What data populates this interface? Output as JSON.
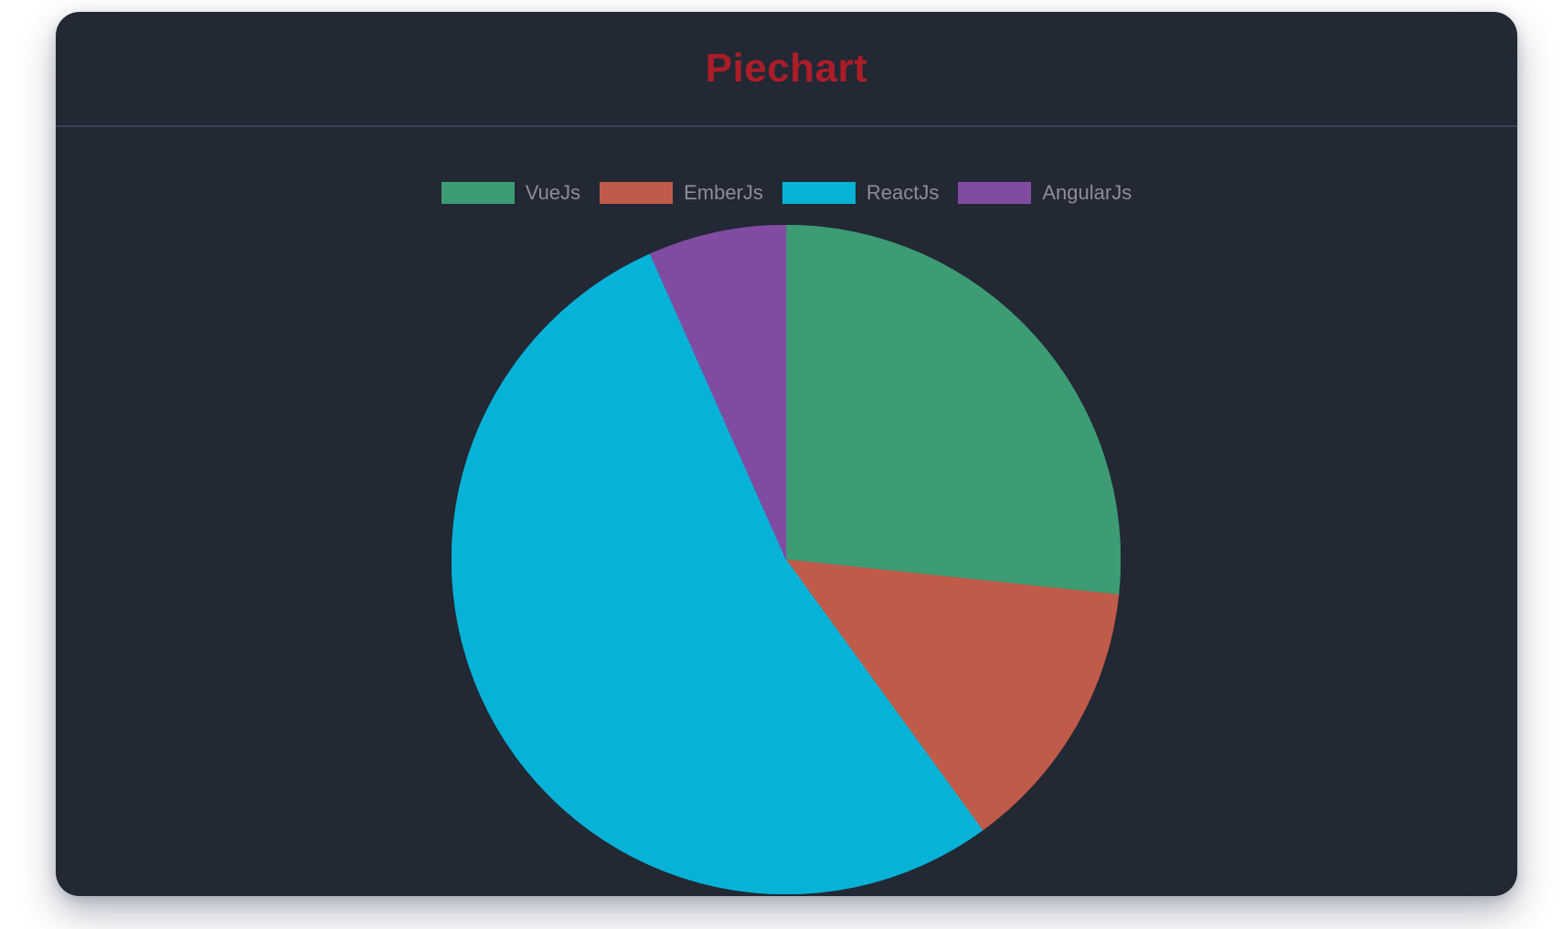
{
  "page": {
    "background": "#ffffff"
  },
  "card": {
    "background": "#222834",
    "divider_color": "#3a4156",
    "header": {
      "title": "Piechart",
      "title_color": "#ab1d27"
    }
  },
  "chart_data": {
    "type": "pie",
    "title": "Piechart",
    "labels": [
      "VueJs",
      "EmberJs",
      "ReactJs",
      "AngularJs"
    ],
    "values": [
      40,
      20,
      80,
      10
    ],
    "colors": [
      "#3d9c74",
      "#c05a49",
      "#06b3d7",
      "#814ba2"
    ],
    "legend_position": "top",
    "legend_text_color": "#8b8e96",
    "start_angle_deg": 0,
    "direction": "clockwise"
  }
}
